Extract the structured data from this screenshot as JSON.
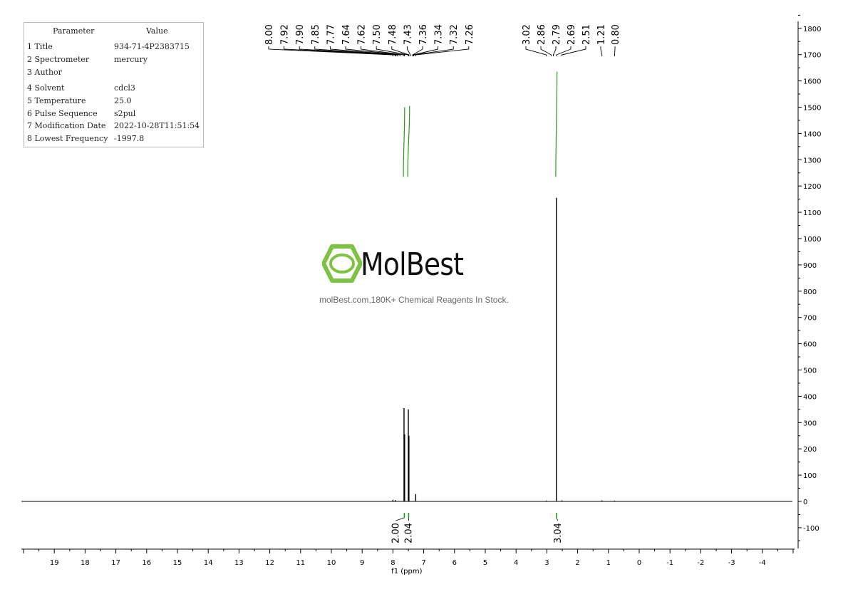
{
  "parameters": {
    "header_key": "Parameter",
    "header_value": "Value",
    "rows": [
      {
        "key": "1 Title",
        "value": "934-71-4P2383715"
      },
      {
        "key": "2 Spectrometer",
        "value": "mercury"
      },
      {
        "key": "3 Author",
        "value": ""
      },
      {
        "key": "4 Solvent",
        "value": "cdcl3"
      },
      {
        "key": "5 Temperature",
        "value": "25.0"
      },
      {
        "key": "6 Pulse Sequence",
        "value": "s2pul"
      },
      {
        "key": "7 Modification Date",
        "value": "2022-10-28T11:51:54"
      },
      {
        "key": "8 Lowest Frequency",
        "value": "-1997.8"
      }
    ]
  },
  "watermark": {
    "brand": "MolBest",
    "tagline": "molBest.com,180K+ Chemical Reagents In Stock.",
    "logo_color": "#7dc242"
  },
  "chart_data": {
    "type": "line",
    "xlabel": "f1 (ppm)",
    "xlim": [
      20,
      -5
    ],
    "x_ticks": [
      19,
      18,
      17,
      16,
      15,
      14,
      13,
      12,
      11,
      10,
      9,
      8,
      7,
      6,
      5,
      4,
      3,
      2,
      1,
      0,
      -1,
      -2,
      -3,
      -4
    ],
    "ylim": [
      -150,
      1850
    ],
    "y_ticks": [
      1800,
      1700,
      1600,
      1500,
      1400,
      1300,
      1200,
      1100,
      1000,
      900,
      800,
      700,
      600,
      500,
      400,
      300,
      200,
      100,
      0,
      -100
    ],
    "peak_labels_aromatic": [
      "8.00",
      "7.92",
      "7.90",
      "7.85",
      "7.77",
      "7.64",
      "7.62",
      "7.50",
      "7.48",
      "7.43",
      "7.36",
      "7.34",
      "7.32",
      "7.26"
    ],
    "peak_labels_aliphatic": [
      "3.02",
      "2.86",
      "2.79",
      "2.69",
      "2.51"
    ],
    "peak_labels_single": [
      "1.21",
      "0.80"
    ],
    "integrals": [
      {
        "label": "2.00",
        "ppm": 7.63
      },
      {
        "label": "2.04",
        "ppm": 7.49
      },
      {
        "label": "3.04",
        "ppm": 2.69
      }
    ],
    "peaks": [
      {
        "ppm": 8.0,
        "height": 6
      },
      {
        "ppm": 7.92,
        "height": 5
      },
      {
        "ppm": 7.64,
        "height": 355
      },
      {
        "ppm": 7.62,
        "height": 255
      },
      {
        "ppm": 7.5,
        "height": 350
      },
      {
        "ppm": 7.48,
        "height": 250
      },
      {
        "ppm": 7.26,
        "height": 28
      },
      {
        "ppm": 3.02,
        "height": 3
      },
      {
        "ppm": 2.69,
        "height": 1155
      },
      {
        "ppm": 2.51,
        "height": 4
      },
      {
        "ppm": 1.21,
        "height": 4
      },
      {
        "ppm": 0.8,
        "height": 3
      }
    ],
    "integral_curves": [
      {
        "ppm_start": 7.62,
        "ppm_end": 7.66,
        "y_bottom": 1235,
        "y_top": 1500
      },
      {
        "ppm_start": 7.46,
        "ppm_end": 7.52,
        "y_bottom": 1235,
        "y_top": 1505
      },
      {
        "ppm_start": 2.67,
        "ppm_end": 2.71,
        "y_bottom": 1235,
        "y_top": 1635
      }
    ],
    "colors": {
      "spectrum": "#000000",
      "integral": "#2a9a1a",
      "axis": "#000000"
    }
  }
}
